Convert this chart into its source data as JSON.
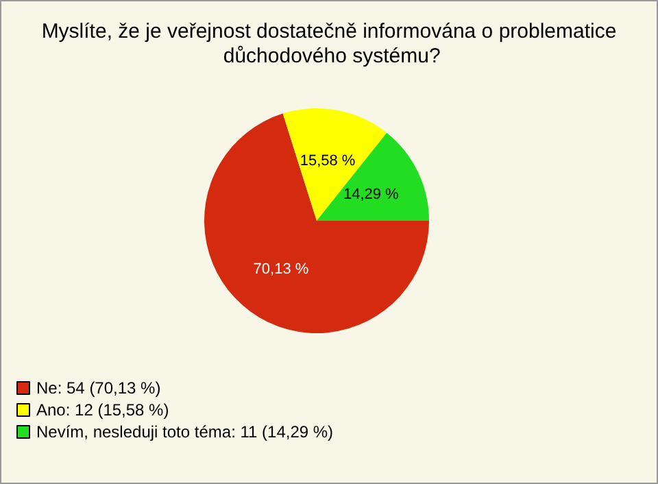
{
  "chart_data": {
    "type": "pie",
    "title": "Myslíte, že je veřejnost dostatečně informována o problematice důchodového systému?",
    "categories": [
      "Ne: 54 (70,13 %)",
      "Ano: 12 (15,58 %)",
      "Nevím, nesleduji toto téma: 11 (14,29 %)"
    ],
    "values": [
      70.13,
      15.58,
      14.29
    ],
    "colors": [
      "#d42a10",
      "#ffff00",
      "#22dd22"
    ],
    "value_labels": [
      "70,13 %",
      "15,58 %",
      "14,29 %"
    ],
    "legend": "bottom left"
  }
}
